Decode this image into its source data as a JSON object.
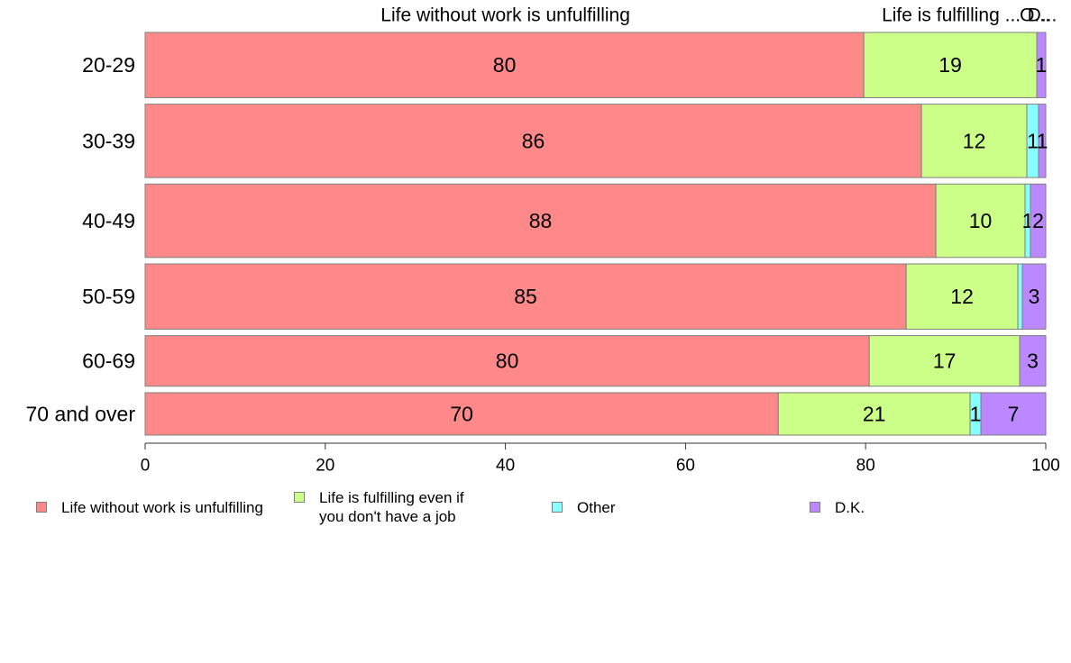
{
  "chart_data": {
    "type": "bar",
    "orientation": "horizontal",
    "stacked": true,
    "categories": [
      "20-29",
      "30-39",
      "40-49",
      "50-59",
      "60-69",
      "70 and over"
    ],
    "category_weights": [
      0.8,
      0.9,
      0.9,
      0.8,
      0.62,
      0.52
    ],
    "series": [
      {
        "name": "Life without work is unfulfilling",
        "color": "#ff8888",
        "values": [
          79.8,
          86.2,
          87.8,
          84.5,
          80.4,
          70.3
        ],
        "labels": [
          "80",
          "86",
          "88",
          "85",
          "80",
          "70"
        ]
      },
      {
        "name": "Life is fulfilling even if\nyou don't have a job",
        "color": "#ccff88",
        "values": [
          19.2,
          11.7,
          9.9,
          12.4,
          16.7,
          21.3
        ],
        "labels": [
          "19",
          "12",
          "10",
          "12",
          "17",
          "21"
        ]
      },
      {
        "name": "Other",
        "color": "#88ffff",
        "values": [
          0,
          1.3,
          0.6,
          0.5,
          0,
          1.2
        ],
        "labels": [
          "",
          "1",
          "1",
          "",
          "",
          "1"
        ]
      },
      {
        "name": "D.K.",
        "color": "#bb88ff",
        "values": [
          1.0,
          0.8,
          1.7,
          2.6,
          2.9,
          7.2
        ],
        "labels": [
          "1",
          "1",
          "2",
          "3",
          "3",
          "7"
        ]
      }
    ],
    "top_labels": [
      {
        "text": "Life without work is unfulfilling",
        "x": 40
      },
      {
        "text": "Life is fulfilling ...",
        "x": 89.5
      },
      {
        "text": "O...",
        "x": 98.8
      },
      {
        "text": "D...",
        "x": 99.6
      }
    ],
    "xlim": [
      0,
      100
    ],
    "xticks": [
      0,
      20,
      40,
      60,
      80,
      100
    ],
    "xlabel": "",
    "ylabel": "",
    "title": "",
    "grid": false,
    "legend_position": "bottom"
  }
}
